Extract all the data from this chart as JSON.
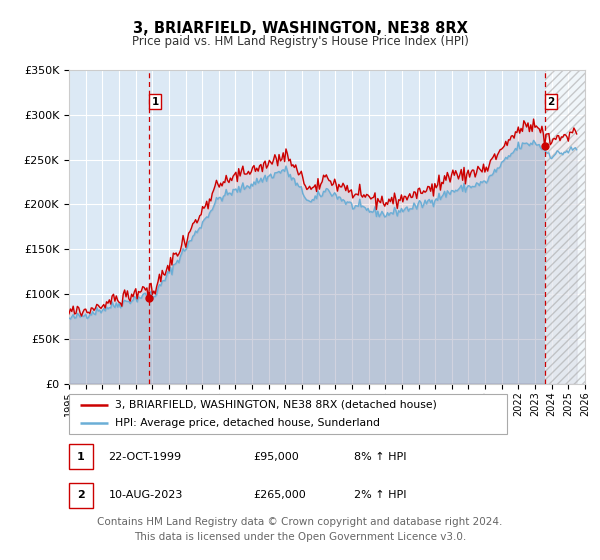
{
  "title": "3, BRIARFIELD, WASHINGTON, NE38 8RX",
  "subtitle": "Price paid vs. HM Land Registry's House Price Index (HPI)",
  "legend_line1": "3, BRIARFIELD, WASHINGTON, NE38 8RX (detached house)",
  "legend_line2": "HPI: Average price, detached house, Sunderland",
  "sale1_label": "1",
  "sale1_date": "22-OCT-1999",
  "sale1_price": "£95,000",
  "sale1_hpi": "8% ↑ HPI",
  "sale2_label": "2",
  "sale2_date": "10-AUG-2023",
  "sale2_price": "£265,000",
  "sale2_hpi": "2% ↑ HPI",
  "sale1_year": 1999.8,
  "sale1_value": 95000,
  "sale2_year": 2023.6,
  "sale2_value": 265000,
  "ylabel_ticks": [
    "£0",
    "£50K",
    "£100K",
    "£150K",
    "£200K",
    "£250K",
    "£300K",
    "£350K"
  ],
  "ytick_vals": [
    0,
    50000,
    100000,
    150000,
    200000,
    250000,
    300000,
    350000
  ],
  "xmin": 1995.0,
  "xmax": 2026.0,
  "ymin": 0,
  "ymax": 350000,
  "hpi_color": "#6baed6",
  "price_color": "#cc0000",
  "bg_color": "#dce9f5",
  "vline_color": "#cc0000",
  "grid_color": "#ffffff",
  "footer_text": "Contains HM Land Registry data © Crown copyright and database right 2024.\nThis data is licensed under the Open Government Licence v3.0.",
  "footnote_fontsize": 7.5
}
